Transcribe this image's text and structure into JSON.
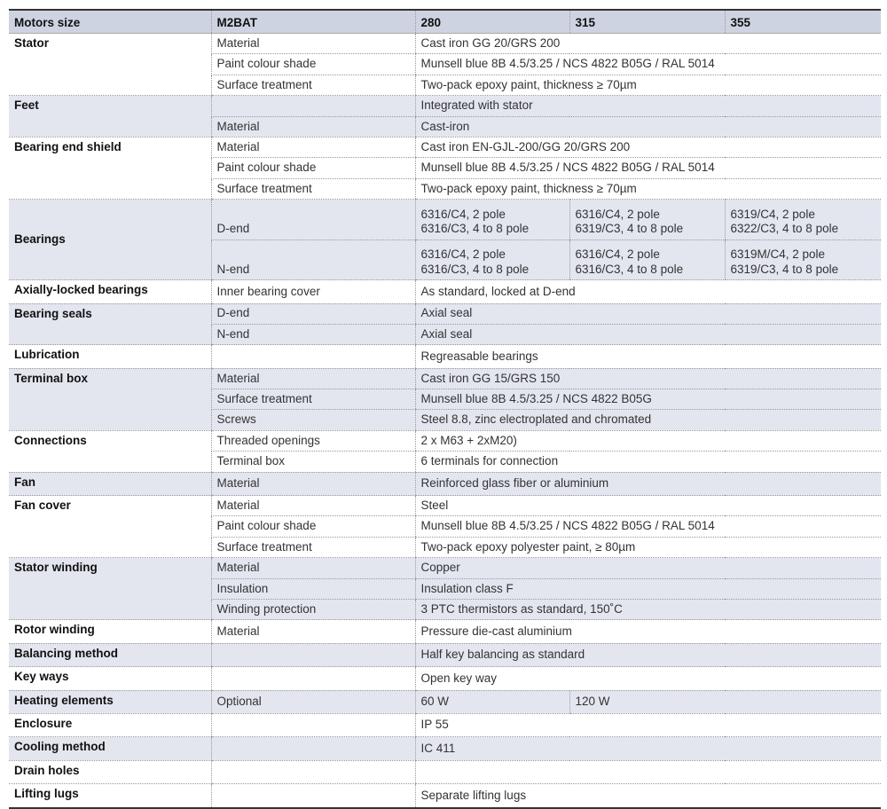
{
  "header": [
    "Motors size",
    "M2BAT",
    "280",
    "315",
    "355"
  ],
  "colors": {
    "header_bg": "#cdd3e1",
    "shade_bg": "#e3e6ef"
  },
  "groups": [
    {
      "label": "Stator",
      "rows": [
        {
          "attr": "Material",
          "values": [
            "Cast iron GG 20/GRS 200"
          ]
        },
        {
          "attr": "Paint colour shade",
          "values": [
            "Munsell blue 8B 4.5/3.25 / NCS 4822 B05G / RAL 5014"
          ]
        },
        {
          "attr": "Surface treatment",
          "values": [
            "Two-pack epoxy paint, thickness ≥ 70µm"
          ]
        }
      ]
    },
    {
      "label": "Feet",
      "rows": [
        {
          "attr": "",
          "values": [
            "Integrated with stator"
          ]
        },
        {
          "attr": "Material",
          "values": [
            "Cast-iron"
          ]
        }
      ]
    },
    {
      "label": "Bearing end shield",
      "rows": [
        {
          "attr": "Material",
          "values": [
            "Cast iron EN-GJL-200/GG 20/GRS 200"
          ]
        },
        {
          "attr": "Paint colour shade",
          "values": [
            "Munsell blue 8B 4.5/3.25 / NCS 4822 B05G / RAL 5014"
          ]
        },
        {
          "attr": "Surface treatment",
          "values": [
            "Two-pack epoxy paint, thickness ≥ 70µm"
          ]
        }
      ]
    },
    {
      "label": "Bearings",
      "double": true,
      "rows": [
        {
          "attr": "D-end",
          "values": [
            [
              "6316/C4, 2 pole",
              "6316/C3, 4 to 8 pole"
            ],
            [
              "6316/C4, 2 pole",
              "6319/C3, 4 to 8 pole"
            ],
            [
              "6319/C4, 2 pole",
              "6322/C3, 4 to 8 pole"
            ]
          ]
        },
        {
          "attr": "N-end",
          "values": [
            [
              "6316/C4, 2 pole",
              "6316/C3, 4 to 8 pole"
            ],
            [
              "6316/C4, 2 pole",
              "6316/C3, 4 to 8 pole"
            ],
            [
              "6319M/C4, 2 pole",
              "6319/C3, 4 to 8 pole"
            ]
          ]
        }
      ]
    },
    {
      "label": "Axially-locked bearings",
      "rows": [
        {
          "attr": "Inner bearing cover",
          "values": [
            "As standard, locked at D-end"
          ]
        }
      ]
    },
    {
      "label": "Bearing seals",
      "rows": [
        {
          "attr": "D-end",
          "values": [
            "Axial seal"
          ]
        },
        {
          "attr": "N-end",
          "values": [
            "Axial seal"
          ]
        }
      ]
    },
    {
      "label": "Lubrication",
      "rows": [
        {
          "attr": "",
          "values": [
            "Regreasable bearings"
          ]
        }
      ]
    },
    {
      "label": "Terminal box",
      "rows": [
        {
          "attr": "Material",
          "values": [
            "Cast iron GG 15/GRS 150"
          ]
        },
        {
          "attr": "Surface treatment",
          "values": [
            "Munsell blue 8B 4.5/3.25 / NCS 4822 B05G"
          ]
        },
        {
          "attr": "Screws",
          "values": [
            "Steel 8.8, zinc electroplated and chromated"
          ]
        }
      ]
    },
    {
      "label": "Connections",
      "rows": [
        {
          "attr": "Threaded openings",
          "values": [
            "2 x M63 + 2xM20)"
          ]
        },
        {
          "attr": "Terminal box",
          "values": [
            "6 terminals for connection"
          ]
        }
      ]
    },
    {
      "label": "Fan",
      "rows": [
        {
          "attr": "Material",
          "values": [
            "Reinforced glass fiber or aluminium"
          ]
        }
      ]
    },
    {
      "label": "Fan cover",
      "rows": [
        {
          "attr": "Material",
          "values": [
            "Steel"
          ]
        },
        {
          "attr": "Paint colour shade",
          "values": [
            "Munsell blue 8B 4.5/3.25 / NCS 4822 B05G / RAL 5014"
          ]
        },
        {
          "attr": "Surface treatment",
          "values": [
            "Two-pack epoxy polyester paint, ≥ 80µm"
          ]
        }
      ]
    },
    {
      "label": "Stator winding",
      "rows": [
        {
          "attr": "Material",
          "values": [
            "Copper"
          ]
        },
        {
          "attr": "Insulation",
          "values": [
            "Insulation class F"
          ]
        },
        {
          "attr": "Winding protection",
          "values": [
            "3 PTC thermistors as standard, 150˚C"
          ]
        }
      ]
    },
    {
      "label": "Rotor winding",
      "rows": [
        {
          "attr": "Material",
          "values": [
            "Pressure die-cast aluminium"
          ]
        }
      ]
    },
    {
      "label": "Balancing method",
      "rows": [
        {
          "attr": "",
          "values": [
            "Half key balancing as standard"
          ]
        }
      ]
    },
    {
      "label": "Key ways",
      "rows": [
        {
          "attr": "",
          "values": [
            "Open key way"
          ]
        }
      ]
    },
    {
      "label": "Heating elements",
      "rows": [
        {
          "attr": "Optional",
          "values": [
            "60 W",
            "120 W"
          ]
        }
      ]
    },
    {
      "label": "Enclosure",
      "rows": [
        {
          "attr": "",
          "values": [
            "IP 55"
          ]
        }
      ]
    },
    {
      "label": "Cooling method",
      "rows": [
        {
          "attr": "",
          "values": [
            "IC 411"
          ]
        }
      ]
    },
    {
      "label": "Drain holes",
      "rows": [
        {
          "attr": "",
          "values": [
            ""
          ]
        }
      ]
    },
    {
      "label": "Lifting lugs",
      "rows": [
        {
          "attr": "",
          "values": [
            "Separate lifting lugs"
          ]
        }
      ]
    }
  ]
}
